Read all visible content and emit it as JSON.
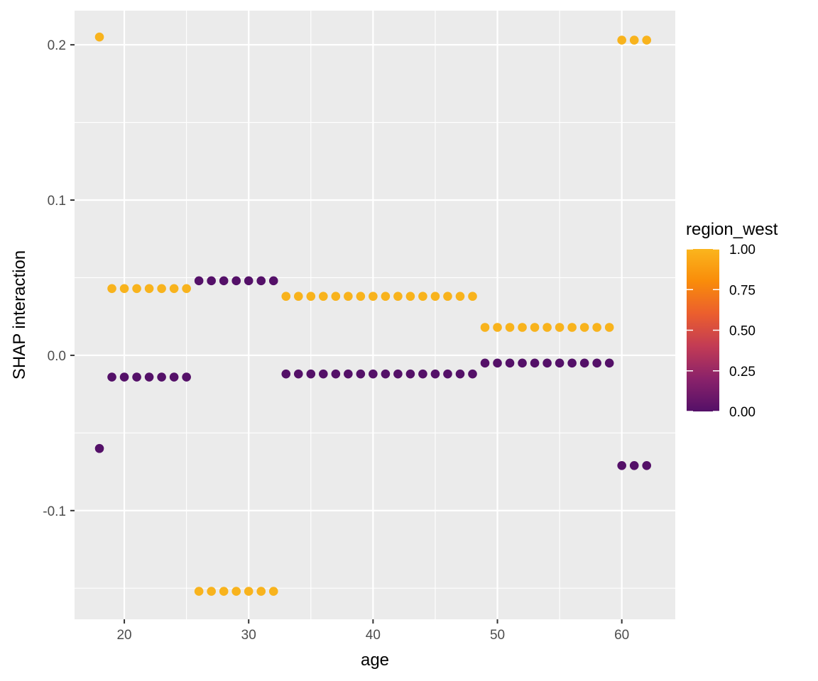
{
  "chart_data": {
    "type": "scatter",
    "title": "",
    "xlabel": "age",
    "ylabel": "SHAP interaction",
    "xlim": [
      16,
      64.3
    ],
    "ylim": [
      -0.17,
      0.222
    ],
    "xticks": [
      20,
      30,
      40,
      50,
      60
    ],
    "xtick_labels": [
      "20",
      "30",
      "40",
      "50",
      "60"
    ],
    "yticks": [
      -0.1,
      0.0,
      0.1,
      0.2
    ],
    "ytick_labels": [
      "-0.1",
      "0.0",
      "0.1",
      "0.2"
    ],
    "grid": true,
    "legend": {
      "title": "region_west",
      "placement": "right",
      "type": "colorbar",
      "range": [
        0,
        1
      ],
      "ticks": [
        1.0,
        0.75,
        0.5,
        0.25,
        0.0
      ],
      "tick_labels": [
        "1.00",
        "0.75",
        "0.50",
        "0.25",
        "0.00"
      ]
    },
    "colors": {
      "low": "#541068",
      "high": "#F8B31D",
      "panel_background": "#EBEBEB",
      "grid": "#FFFFFF"
    },
    "color_stops": [
      "#541068",
      "#8A226A",
      "#C23B55",
      "#EB5E2E",
      "#F98C0A",
      "#FAB51D"
    ],
    "series": [
      {
        "value": 1,
        "points": [
          [
            18,
            0.205
          ],
          [
            19,
            0.043
          ],
          [
            20,
            0.043
          ],
          [
            21,
            0.043
          ],
          [
            22,
            0.043
          ],
          [
            23,
            0.043
          ],
          [
            24,
            0.043
          ],
          [
            25,
            0.043
          ],
          [
            26,
            -0.152
          ],
          [
            27,
            -0.152
          ],
          [
            28,
            -0.152
          ],
          [
            29,
            -0.152
          ],
          [
            30,
            -0.152
          ],
          [
            31,
            -0.152
          ],
          [
            32,
            -0.152
          ],
          [
            33,
            0.038
          ],
          [
            34,
            0.038
          ],
          [
            35,
            0.038
          ],
          [
            36,
            0.038
          ],
          [
            37,
            0.038
          ],
          [
            38,
            0.038
          ],
          [
            39,
            0.038
          ],
          [
            40,
            0.038
          ],
          [
            41,
            0.038
          ],
          [
            42,
            0.038
          ],
          [
            43,
            0.038
          ],
          [
            44,
            0.038
          ],
          [
            45,
            0.038
          ],
          [
            46,
            0.038
          ],
          [
            47,
            0.038
          ],
          [
            48,
            0.038
          ],
          [
            49,
            0.018
          ],
          [
            50,
            0.018
          ],
          [
            51,
            0.018
          ],
          [
            52,
            0.018
          ],
          [
            53,
            0.018
          ],
          [
            54,
            0.018
          ],
          [
            55,
            0.018
          ],
          [
            56,
            0.018
          ],
          [
            57,
            0.018
          ],
          [
            58,
            0.018
          ],
          [
            59,
            0.018
          ],
          [
            60,
            0.203
          ],
          [
            61,
            0.203
          ],
          [
            62,
            0.203
          ]
        ]
      },
      {
        "value": 0,
        "points": [
          [
            18,
            -0.06
          ],
          [
            19,
            -0.014
          ],
          [
            20,
            -0.014
          ],
          [
            21,
            -0.014
          ],
          [
            22,
            -0.014
          ],
          [
            23,
            -0.014
          ],
          [
            24,
            -0.014
          ],
          [
            25,
            -0.014
          ],
          [
            26,
            0.048
          ],
          [
            27,
            0.048
          ],
          [
            28,
            0.048
          ],
          [
            29,
            0.048
          ],
          [
            30,
            0.048
          ],
          [
            31,
            0.048
          ],
          [
            32,
            0.048
          ],
          [
            33,
            -0.012
          ],
          [
            34,
            -0.012
          ],
          [
            35,
            -0.012
          ],
          [
            36,
            -0.012
          ],
          [
            37,
            -0.012
          ],
          [
            38,
            -0.012
          ],
          [
            39,
            -0.012
          ],
          [
            40,
            -0.012
          ],
          [
            41,
            -0.012
          ],
          [
            42,
            -0.012
          ],
          [
            43,
            -0.012
          ],
          [
            44,
            -0.012
          ],
          [
            45,
            -0.012
          ],
          [
            46,
            -0.012
          ],
          [
            47,
            -0.012
          ],
          [
            48,
            -0.012
          ],
          [
            49,
            -0.005
          ],
          [
            50,
            -0.005
          ],
          [
            51,
            -0.005
          ],
          [
            52,
            -0.005
          ],
          [
            53,
            -0.005
          ],
          [
            54,
            -0.005
          ],
          [
            55,
            -0.005
          ],
          [
            56,
            -0.005
          ],
          [
            57,
            -0.005
          ],
          [
            58,
            -0.005
          ],
          [
            59,
            -0.005
          ],
          [
            60,
            -0.071
          ],
          [
            61,
            -0.071
          ],
          [
            62,
            -0.071
          ]
        ]
      }
    ]
  }
}
